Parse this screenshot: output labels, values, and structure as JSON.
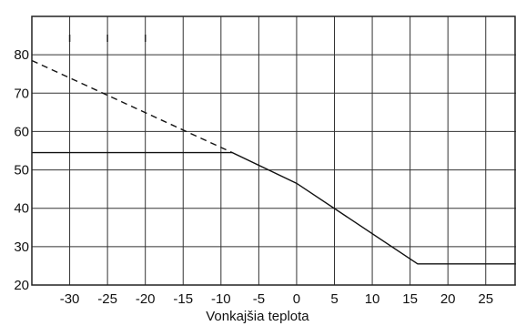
{
  "chart_data": {
    "type": "line",
    "title": "",
    "xlabel": "Vonkajšia teplota",
    "ylabel": "",
    "xlim": [
      -35,
      29
    ],
    "ylim": [
      20,
      90
    ],
    "grid": true,
    "x_ticks": [
      -30,
      -25,
      -20,
      -15,
      -10,
      -5,
      0,
      5,
      10,
      15,
      20,
      25
    ],
    "y_ticks": [
      20,
      30,
      40,
      50,
      60,
      70,
      80
    ],
    "x_tick_labels": [
      "-30",
      "-25",
      "-20",
      "-15",
      "-10",
      "-5",
      "0",
      "5",
      "10",
      "15",
      "20",
      "25"
    ],
    "y_tick_labels": [
      "20",
      "30",
      "40",
      "50",
      "60",
      "70",
      "80"
    ],
    "series": [
      {
        "style": "dashed",
        "color": "#111111",
        "points": [
          {
            "x": -35,
            "y": 78.5
          },
          {
            "x": -8.5,
            "y": 54.5
          }
        ]
      },
      {
        "style": "solid",
        "color": "#111111",
        "points": [
          {
            "x": -35,
            "y": 54.5
          },
          {
            "x": -8.5,
            "y": 54.5
          },
          {
            "x": 0,
            "y": 46.5
          },
          {
            "x": 16,
            "y": 25.5
          },
          {
            "x": 29,
            "y": 25.5
          }
        ]
      }
    ],
    "top_marks_x": [
      -30,
      -25,
      -20
    ]
  }
}
